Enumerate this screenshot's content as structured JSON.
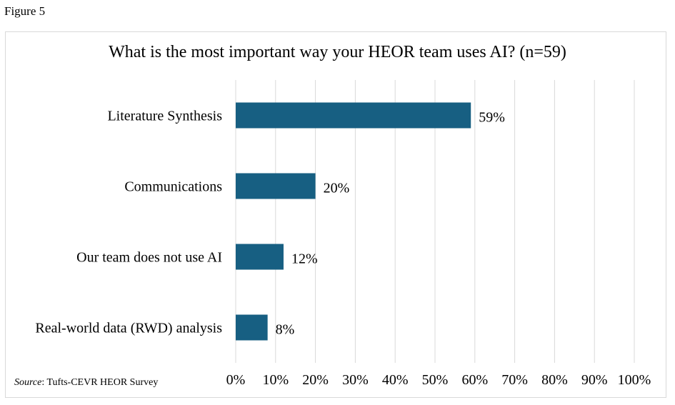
{
  "figure_label": "Figure 5",
  "source": {
    "prefix": "Source",
    "text": ": Tufts-CEVR HEOR Survey"
  },
  "chart_data": {
    "type": "bar",
    "orientation": "horizontal",
    "title": "What is the most important way your HEOR team uses AI? (n=59)",
    "categories": [
      "Literature Synthesis",
      "Communications",
      "Our team does not use AI",
      "Real-world data (RWD) analysis"
    ],
    "values": [
      59,
      20,
      12,
      8
    ],
    "data_labels": [
      "59%",
      "20%",
      "12%",
      "8%"
    ],
    "xlim": [
      0,
      100
    ],
    "x_ticks": [
      "0%",
      "10%",
      "20%",
      "30%",
      "40%",
      "50%",
      "60%",
      "70%",
      "80%",
      "90%",
      "100%"
    ],
    "grid": "vertical",
    "bar_color": "#175f82",
    "grid_color": "#d9d9d9"
  }
}
